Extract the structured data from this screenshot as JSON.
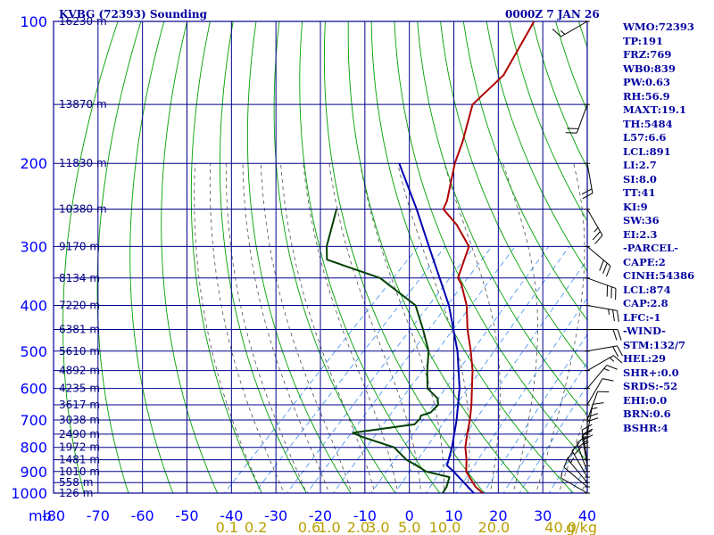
{
  "header": {
    "station": "KVBG (72393) Sounding",
    "valid_time": "0000Z  7 JAN 26"
  },
  "indices": [
    "WMO:72393",
    "TP:191",
    "FRZ:769",
    "WB0:839",
    "PW:0.63",
    "RH:56.9",
    "MAXT:19.1",
    "TH:5484",
    "L57:6.6",
    "LCL:891",
    "LI:2.7",
    "SI:8.0",
    "TT:41",
    "KI:9",
    "SW:36",
    "EI:2.3",
    "-PARCEL-",
    "CAPE:2",
    "CINH:54386",
    "LCL:874",
    "CAP:2.8",
    "LFC:-1",
    "-WIND-",
    "STM:132/7",
    "HEL:29",
    "SHR+:0.0",
    "SRDS:-52",
    "EHI:0.0",
    "BRN:0.6",
    "BSHR:4"
  ],
  "colors": {
    "grid": "#00008b",
    "dry_adiabat": "#00a000",
    "moist_adiabat": "#505050",
    "mixing_ratio": "#3a8ff0",
    "temperature": "#b00000",
    "dewpoint": "#004000",
    "parcel": "#0000b0",
    "wind": "#000000",
    "tick_label": "#0000ff",
    "mixing_label": "#b8a000"
  },
  "chart_data": {
    "type": "skew-t",
    "unit_label": "mb",
    "x_unit": "°C",
    "xlim": [
      -80,
      40
    ],
    "ylim": [
      1000,
      100
    ],
    "pressure_ticks": [
      100,
      200,
      300,
      400,
      500,
      600,
      700,
      800,
      900,
      1000
    ],
    "temp_ticks": [
      -80,
      -70,
      -60,
      -50,
      -40,
      -30,
      -20,
      -10,
      0,
      10,
      20,
      30,
      40
    ],
    "extra_isobars": [
      150,
      250,
      350,
      450,
      550,
      650,
      750,
      850,
      950
    ],
    "mixing_ratio_labels": [
      "0.1",
      "0.2",
      "0.6",
      "1.0",
      "2.0",
      "3.0",
      "5.0",
      "10.0",
      "20.0",
      "40.0",
      "g/kg"
    ],
    "mixing_ratio_positions": [
      -41,
      -34.5,
      -22.5,
      -18,
      -11.5,
      -7,
      0,
      8,
      19,
      34,
      38.7
    ],
    "height_labels": [
      {
        "p": 100,
        "text": "16230 m"
      },
      {
        "p": 150,
        "text": "13870 m"
      },
      {
        "p": 200,
        "text": "11830 m"
      },
      {
        "p": 250,
        "text": "10380 m"
      },
      {
        "p": 300,
        "text": "9170 m"
      },
      {
        "p": 350,
        "text": "8134 m"
      },
      {
        "p": 400,
        "text": "7220 m"
      },
      {
        "p": 450,
        "text": "6381 m"
      },
      {
        "p": 500,
        "text": "5610 m"
      },
      {
        "p": 550,
        "text": "4892 m"
      },
      {
        "p": 600,
        "text": "4235 m"
      },
      {
        "p": 650,
        "text": "3617 m"
      },
      {
        "p": 700,
        "text": "3038 m"
      },
      {
        "p": 750,
        "text": "2490 m"
      },
      {
        "p": 800,
        "text": "1972 m"
      },
      {
        "p": 850,
        "text": "1481 m"
      },
      {
        "p": 900,
        "text": "1010 m"
      },
      {
        "p": 950,
        "text": "558 m"
      },
      {
        "p": 1000,
        "text": "126 m"
      }
    ],
    "temperature": [
      [
        1000,
        16.5
      ],
      [
        970,
        13.5
      ],
      [
        925,
        10
      ],
      [
        900,
        8
      ],
      [
        850,
        5.5
      ],
      [
        800,
        2.5
      ],
      [
        750,
        0
      ],
      [
        700,
        -2.5
      ],
      [
        650,
        -5.5
      ],
      [
        600,
        -9
      ],
      [
        550,
        -12.8
      ],
      [
        500,
        -17.5
      ],
      [
        450,
        -23
      ],
      [
        400,
        -28.5
      ],
      [
        360,
        -34.5
      ],
      [
        350,
        -36.5
      ],
      [
        300,
        -41
      ],
      [
        270,
        -48.5
      ],
      [
        250,
        -55
      ],
      [
        240,
        -56
      ],
      [
        200,
        -62.5
      ],
      [
        180,
        -65.5
      ],
      [
        150,
        -71.5
      ],
      [
        130,
        -71
      ],
      [
        100,
        -76
      ]
    ],
    "dewpoint": [
      [
        1000,
        7.5
      ],
      [
        970,
        7
      ],
      [
        925,
        5.5
      ],
      [
        900,
        -1
      ],
      [
        870,
        -5
      ],
      [
        850,
        -8
      ],
      [
        800,
        -13.5
      ],
      [
        760,
        -23
      ],
      [
        745,
        -26
      ],
      [
        715,
        -14
      ],
      [
        695,
        -14
      ],
      [
        685,
        -14.5
      ],
      [
        675,
        -13
      ],
      [
        660,
        -13
      ],
      [
        650,
        -13
      ],
      [
        630,
        -14.5
      ],
      [
        600,
        -19
      ],
      [
        550,
        -23
      ],
      [
        500,
        -27
      ],
      [
        450,
        -33
      ],
      [
        400,
        -40
      ],
      [
        350,
        -54
      ],
      [
        320,
        -70
      ],
      [
        300,
        -73
      ],
      [
        250,
        -79
      ]
    ],
    "parcel": [
      [
        1000,
        14.5
      ],
      [
        900,
        5.2
      ],
      [
        874,
        2.4
      ],
      [
        800,
        -0.5
      ],
      [
        700,
        -5.5
      ],
      [
        600,
        -11.8
      ],
      [
        500,
        -20.5
      ],
      [
        400,
        -32.5
      ],
      [
        300,
        -50
      ],
      [
        250,
        -61
      ],
      [
        200,
        -75
      ]
    ],
    "wind_barbs": [
      {
        "p": 1000,
        "dir": 300,
        "spd": 5
      },
      {
        "p": 970,
        "dir": 310,
        "spd": 10
      },
      {
        "p": 950,
        "dir": 320,
        "spd": 15
      },
      {
        "p": 925,
        "dir": 330,
        "spd": 20
      },
      {
        "p": 900,
        "dir": 340,
        "spd": 20
      },
      {
        "p": 875,
        "dir": 350,
        "spd": 25
      },
      {
        "p": 850,
        "dir": 350,
        "spd": 25
      },
      {
        "p": 800,
        "dir": 0,
        "spd": 20
      },
      {
        "p": 750,
        "dir": 10,
        "spd": 15
      },
      {
        "p": 700,
        "dir": 20,
        "spd": 10
      },
      {
        "p": 650,
        "dir": 30,
        "spd": 10
      },
      {
        "p": 600,
        "dir": 40,
        "spd": 15
      },
      {
        "p": 550,
        "dir": 60,
        "spd": 15
      },
      {
        "p": 500,
        "dir": 80,
        "spd": 20
      },
      {
        "p": 450,
        "dir": 90,
        "spd": 20
      },
      {
        "p": 400,
        "dir": 100,
        "spd": 25
      },
      {
        "p": 350,
        "dir": 110,
        "spd": 30
      },
      {
        "p": 300,
        "dir": 130,
        "spd": 30
      },
      {
        "p": 250,
        "dir": 150,
        "spd": 25
      },
      {
        "p": 200,
        "dir": 170,
        "spd": 20
      },
      {
        "p": 150,
        "dir": 200,
        "spd": 20
      },
      {
        "p": 100,
        "dir": 240,
        "spd": 15
      }
    ]
  }
}
